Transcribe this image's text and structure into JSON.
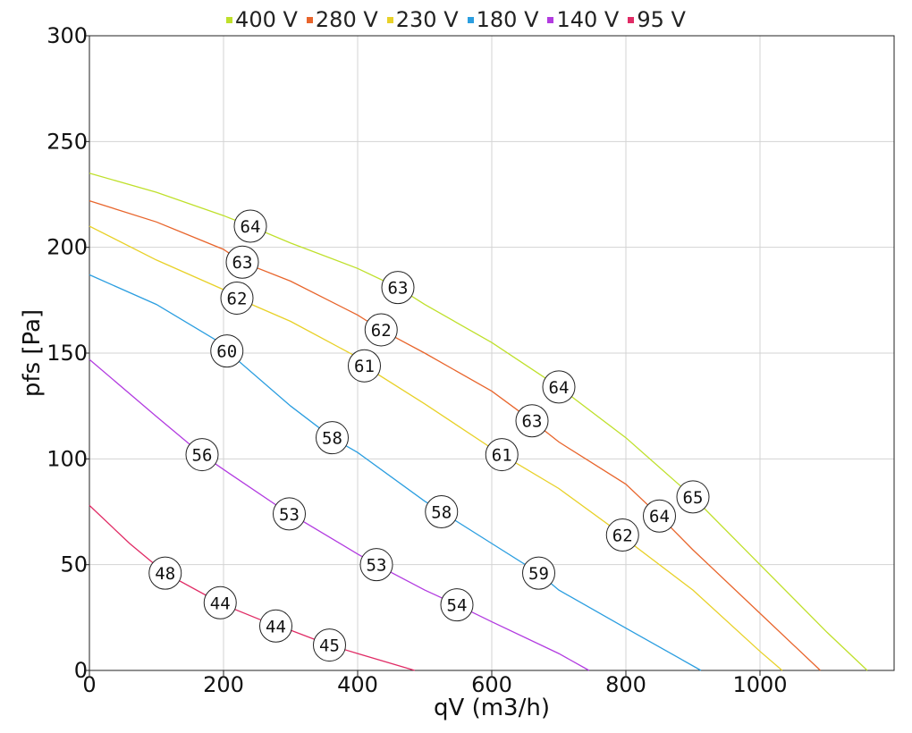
{
  "chart_data": {
    "type": "line",
    "xlabel": "qV (m3/h)",
    "ylabel": "pfs [Pa]",
    "xlim": [
      0,
      1200
    ],
    "ylim": [
      0,
      300
    ],
    "x_ticks": [
      0,
      200,
      400,
      600,
      800,
      1000
    ],
    "y_ticks": [
      0,
      50,
      100,
      150,
      200,
      250,
      300
    ],
    "grid": true,
    "legend_position": "top-center",
    "series": [
      {
        "name": "400 V",
        "color": "#bfe02b",
        "points": [
          [
            0,
            235
          ],
          [
            100,
            226
          ],
          [
            200,
            215
          ],
          [
            240,
            210
          ],
          [
            300,
            202
          ],
          [
            400,
            190
          ],
          [
            460,
            181
          ],
          [
            500,
            173
          ],
          [
            600,
            155
          ],
          [
            700,
            134
          ],
          [
            800,
            110
          ],
          [
            900,
            82
          ],
          [
            1000,
            50
          ],
          [
            1100,
            18
          ],
          [
            1160,
            0
          ]
        ],
        "markers": [
          {
            "x": 240,
            "y": 210,
            "label": "64"
          },
          {
            "x": 460,
            "y": 181,
            "label": "63"
          },
          {
            "x": 700,
            "y": 134,
            "label": "64"
          },
          {
            "x": 900,
            "y": 82,
            "label": "65"
          }
        ]
      },
      {
        "name": "280 V",
        "color": "#e8652c",
        "points": [
          [
            0,
            222
          ],
          [
            100,
            212
          ],
          [
            200,
            199
          ],
          [
            228,
            193
          ],
          [
            300,
            184
          ],
          [
            400,
            168
          ],
          [
            435,
            161
          ],
          [
            500,
            150
          ],
          [
            600,
            132
          ],
          [
            660,
            118
          ],
          [
            700,
            108
          ],
          [
            800,
            88
          ],
          [
            850,
            73
          ],
          [
            900,
            57
          ],
          [
            1000,
            27
          ],
          [
            1090,
            0
          ]
        ],
        "markers": [
          {
            "x": 228,
            "y": 193,
            "label": "63"
          },
          {
            "x": 435,
            "y": 161,
            "label": "62"
          },
          {
            "x": 660,
            "y": 118,
            "label": "63"
          },
          {
            "x": 850,
            "y": 73,
            "label": "64"
          }
        ]
      },
      {
        "name": "230 V",
        "color": "#e8d128",
        "points": [
          [
            0,
            210
          ],
          [
            100,
            194
          ],
          [
            200,
            180
          ],
          [
            220,
            176
          ],
          [
            300,
            165
          ],
          [
            400,
            148
          ],
          [
            410,
            144
          ],
          [
            500,
            126
          ],
          [
            600,
            105
          ],
          [
            615,
            102
          ],
          [
            700,
            86
          ],
          [
            795,
            64
          ],
          [
            800,
            62
          ],
          [
            900,
            38
          ],
          [
            1000,
            9
          ],
          [
            1033,
            0
          ]
        ],
        "markers": [
          {
            "x": 220,
            "y": 176,
            "label": "62"
          },
          {
            "x": 410,
            "y": 144,
            "label": "61"
          },
          {
            "x": 615,
            "y": 102,
            "label": "61"
          },
          {
            "x": 795,
            "y": 64,
            "label": "62"
          }
        ]
      },
      {
        "name": "180 V",
        "color": "#2b9ee0",
        "points": [
          [
            0,
            187
          ],
          [
            100,
            173
          ],
          [
            200,
            154
          ],
          [
            205,
            151
          ],
          [
            300,
            125
          ],
          [
            362,
            110
          ],
          [
            400,
            103
          ],
          [
            500,
            80
          ],
          [
            525,
            75
          ],
          [
            600,
            60
          ],
          [
            670,
            46
          ],
          [
            700,
            38
          ],
          [
            800,
            20
          ],
          [
            912,
            0
          ]
        ],
        "markers": [
          {
            "x": 205,
            "y": 151,
            "label": "60"
          },
          {
            "x": 362,
            "y": 110,
            "label": "58"
          },
          {
            "x": 525,
            "y": 75,
            "label": "58"
          },
          {
            "x": 670,
            "y": 46,
            "label": "59"
          }
        ]
      },
      {
        "name": "140 V",
        "color": "#b23be0",
        "points": [
          [
            0,
            147
          ],
          [
            100,
            120
          ],
          [
            168,
            102
          ],
          [
            200,
            95
          ],
          [
            298,
            74
          ],
          [
            300,
            74
          ],
          [
            400,
            55
          ],
          [
            428,
            50
          ],
          [
            500,
            38
          ],
          [
            548,
            31
          ],
          [
            600,
            23
          ],
          [
            700,
            8
          ],
          [
            745,
            0
          ]
        ],
        "markers": [
          {
            "x": 168,
            "y": 102,
            "label": "56"
          },
          {
            "x": 298,
            "y": 74,
            "label": "53"
          },
          {
            "x": 428,
            "y": 50,
            "label": "53"
          },
          {
            "x": 548,
            "y": 31,
            "label": "54"
          }
        ]
      },
      {
        "name": "95 V",
        "color": "#e02b65",
        "points": [
          [
            0,
            78
          ],
          [
            60,
            60
          ],
          [
            113,
            46
          ],
          [
            200,
            31
          ],
          [
            278,
            21
          ],
          [
            300,
            19
          ],
          [
            358,
            12
          ],
          [
            400,
            8
          ],
          [
            485,
            0
          ]
        ],
        "markers": [
          {
            "x": 113,
            "y": 46,
            "label": "48"
          },
          {
            "x": 195,
            "y": 32,
            "label": "44"
          },
          {
            "x": 278,
            "y": 21,
            "label": "44"
          },
          {
            "x": 358,
            "y": 12,
            "label": "45"
          }
        ]
      }
    ]
  }
}
